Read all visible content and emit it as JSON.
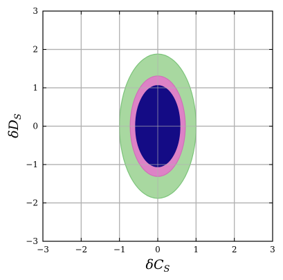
{
  "chart_data": {
    "type": "contour",
    "xlabel": "δC_S",
    "ylabel": "δD_S",
    "xlim": [
      -3,
      3
    ],
    "ylim": [
      -3,
      3
    ],
    "xticks": [
      -3,
      -2,
      -1,
      0,
      1,
      2,
      3
    ],
    "yticks": [
      -3,
      -2,
      -1,
      0,
      1,
      2,
      3
    ],
    "xtick_labels": [
      "−3",
      "−2",
      "−1",
      "0",
      "1",
      "2",
      "3"
    ],
    "ytick_labels": [
      "−3",
      "−2",
      "−1",
      "0",
      "1",
      "2",
      "3"
    ],
    "grid": true,
    "regions": [
      {
        "center": [
          0,
          0
        ],
        "rx": 1.0,
        "ry": 1.88,
        "fill": "#a8d8a0",
        "stroke": "#7cc47a"
      },
      {
        "center": [
          0,
          0
        ],
        "rx": 0.72,
        "ry": 1.31,
        "fill": "#dd82c6",
        "stroke": "#d070b8"
      },
      {
        "center": [
          0,
          0
        ],
        "rx": 0.58,
        "ry": 1.06,
        "fill": "#140b85",
        "stroke": "#140b85"
      }
    ]
  }
}
